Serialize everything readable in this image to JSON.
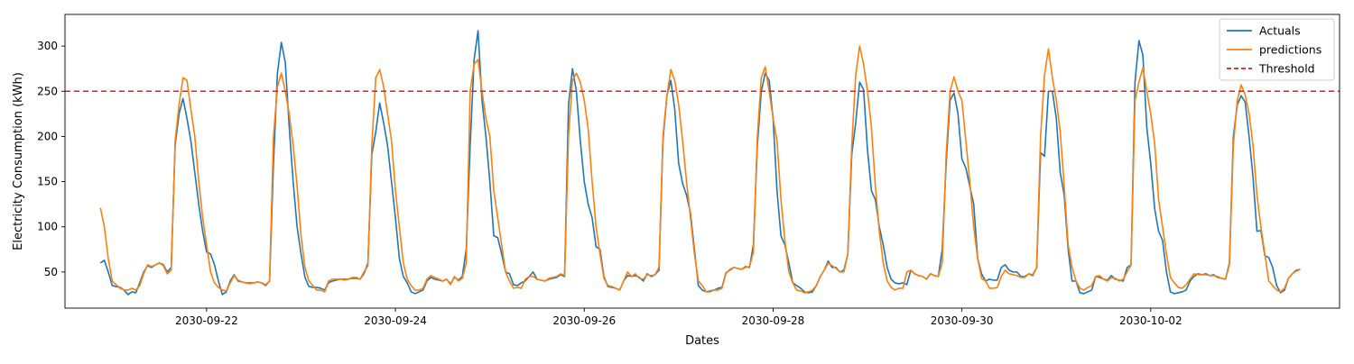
{
  "chart_data": {
    "type": "line",
    "title": "",
    "xlabel": "Dates",
    "ylabel": "Electricity Consumption (kWh)",
    "xlim": [
      "2030-09-20T12:00",
      "2030-10-04T00:00"
    ],
    "ylim": [
      10,
      335
    ],
    "x_ticks": [
      "2030-09-22",
      "2030-09-24",
      "2030-09-26",
      "2030-09-28",
      "2030-09-30",
      "2030-10-02"
    ],
    "y_ticks": [
      50,
      100,
      150,
      200,
      250,
      300
    ],
    "x_start": "2030-09-20T21:00",
    "x_step_hours": 1,
    "grid": false,
    "legend_position": "top-right",
    "threshold": {
      "label": "Threshold",
      "value": 250,
      "color": "#e41a1c"
    },
    "series": [
      {
        "name": "Actuals",
        "color": "#1f77b4",
        "values": [
          60,
          63,
          50,
          35,
          34,
          33,
          30,
          25,
          28,
          27,
          38,
          50,
          57,
          55,
          58,
          60,
          58,
          50,
          55,
          190,
          225,
          242,
          220,
          195,
          160,
          125,
          95,
          72,
          70,
          58,
          40,
          25,
          28,
          40,
          47,
          40,
          39,
          38,
          38,
          38,
          39,
          38,
          35,
          40,
          170,
          270,
          304,
          282,
          210,
          150,
          100,
          70,
          44,
          34,
          33,
          33,
          32,
          30,
          38,
          40,
          41,
          42,
          42,
          42,
          43,
          43,
          42,
          48,
          60,
          180,
          205,
          237,
          215,
          190,
          150,
          110,
          65,
          45,
          38,
          28,
          26,
          28,
          30,
          40,
          44,
          42,
          41,
          40,
          42,
          37,
          44,
          41,
          45,
          75,
          190,
          285,
          317,
          240,
          200,
          150,
          90,
          88,
          70,
          50,
          48,
          36,
          35,
          38,
          40,
          45,
          50,
          42,
          41,
          40,
          42,
          43,
          44,
          47,
          45,
          235,
          275,
          250,
          195,
          150,
          125,
          110,
          78,
          75,
          45,
          34,
          33,
          32,
          30,
          40,
          46,
          45,
          46,
          44,
          40,
          48,
          45,
          47,
          52,
          195,
          245,
          262,
          230,
          170,
          148,
          135,
          115,
          75,
          35,
          30,
          28,
          29,
          30,
          32,
          33,
          49,
          52,
          55,
          54,
          53,
          56,
          55,
          80,
          190,
          250,
          270,
          262,
          220,
          140,
          90,
          80,
          60,
          38,
          35,
          32,
          28,
          27,
          28,
          35,
          45,
          52,
          62,
          55,
          55,
          50,
          52,
          70,
          180,
          215,
          260,
          252,
          185,
          140,
          130,
          100,
          80,
          55,
          42,
          38,
          37,
          38,
          36,
          52,
          48,
          46,
          45,
          42,
          48,
          46,
          45,
          75,
          170,
          240,
          248,
          225,
          175,
          165,
          145,
          125,
          65,
          48,
          40,
          42,
          41,
          41,
          55,
          58,
          52,
          50,
          50,
          45,
          45,
          48,
          46,
          55,
          182,
          178,
          250,
          250,
          220,
          160,
          135,
          75,
          40,
          40,
          27,
          26,
          28,
          30,
          45,
          44,
          42,
          41,
          46,
          42,
          41,
          40,
          55,
          58,
          260,
          306,
          290,
          210,
          170,
          120,
          95,
          85,
          50,
          28,
          26,
          27,
          28,
          30,
          40,
          45,
          48,
          47,
          48,
          46,
          47,
          44,
          43,
          42,
          60,
          200,
          235,
          245,
          238,
          200,
          155,
          95,
          96,
          68,
          66,
          55,
          35,
          27,
          30,
          43,
          48,
          52,
          53
        ]
      },
      {
        "name": "predictions",
        "color": "#ff7f0e",
        "values": [
          121,
          100,
          65,
          40,
          36,
          32,
          30,
          30,
          32,
          30,
          35,
          48,
          58,
          56,
          58,
          60,
          57,
          48,
          52,
          195,
          235,
          265,
          262,
          230,
          200,
          150,
          110,
          80,
          50,
          38,
          33,
          30,
          29,
          38,
          46,
          41,
          39,
          38,
          37,
          38,
          39,
          38,
          36,
          40,
          200,
          255,
          270,
          250,
          225,
          190,
          145,
          90,
          55,
          40,
          35,
          30,
          30,
          28,
          40,
          42,
          42,
          42,
          41,
          42,
          44,
          44,
          42,
          50,
          57,
          190,
          265,
          274,
          255,
          225,
          195,
          140,
          100,
          60,
          42,
          35,
          30,
          30,
          32,
          42,
          46,
          44,
          42,
          40,
          42,
          36,
          45,
          40,
          43,
          60,
          250,
          280,
          285,
          250,
          220,
          200,
          140,
          110,
          80,
          50,
          40,
          32,
          33,
          32,
          42,
          45,
          45,
          42,
          41,
          40,
          43,
          44,
          45,
          48,
          46,
          200,
          262,
          270,
          260,
          240,
          208,
          150,
          100,
          70,
          43,
          35,
          34,
          32,
          30,
          40,
          50,
          45,
          48,
          43,
          42,
          47,
          46,
          47,
          55,
          200,
          245,
          274,
          262,
          235,
          195,
          150,
          110,
          70,
          40,
          35,
          28,
          28,
          30,
          30,
          32,
          48,
          53,
          55,
          54,
          53,
          55,
          56,
          72,
          200,
          265,
          277,
          250,
          220,
          195,
          130,
          85,
          50,
          38,
          30,
          29,
          27,
          28,
          30,
          35,
          45,
          52,
          60,
          57,
          54,
          50,
          50,
          70,
          190,
          268,
          300,
          280,
          250,
          210,
          145,
          95,
          60,
          40,
          33,
          30,
          32,
          32,
          50,
          52,
          48,
          46,
          45,
          42,
          48,
          46,
          45,
          60,
          180,
          250,
          266,
          250,
          240,
          195,
          150,
          100,
          65,
          43,
          40,
          32,
          32,
          33,
          45,
          52,
          48,
          47,
          46,
          44,
          44,
          48,
          47,
          55,
          200,
          268,
          297,
          265,
          240,
          205,
          145,
          80,
          55,
          40,
          32,
          30,
          33,
          35,
          45,
          46,
          42,
          40,
          44,
          43,
          40,
          42,
          50,
          58,
          240,
          260,
          276,
          250,
          225,
          192,
          130,
          100,
          70,
          44,
          38,
          33,
          32,
          36,
          42,
          48,
          47,
          47,
          47,
          46,
          46,
          45,
          43,
          42,
          58,
          190,
          240,
          257,
          246,
          225,
          190,
          135,
          100,
          70,
          40,
          35,
          30,
          28,
          32,
          43,
          48,
          51,
          53
        ]
      }
    ]
  }
}
